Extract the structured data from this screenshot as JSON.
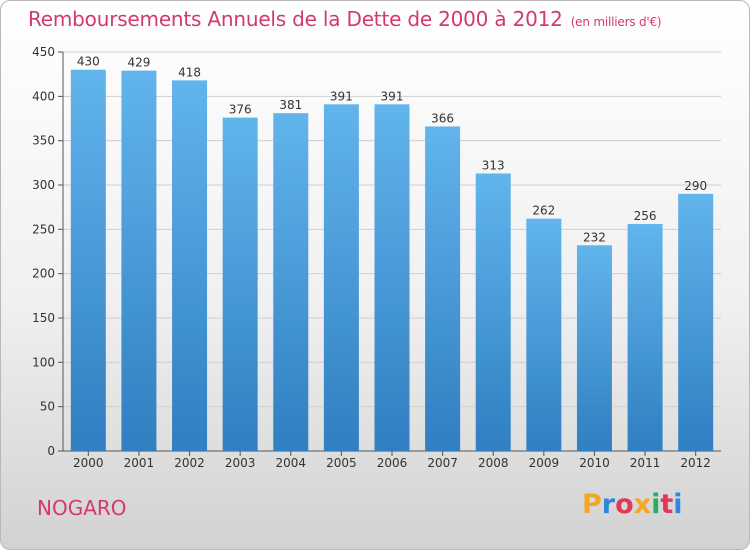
{
  "header": {
    "title": "Remboursements Annuels de la Dette de 2000 à 2012",
    "unit": "(en milliers d'€)"
  },
  "footer": {
    "commune": "NOGARO",
    "logo_letters": [
      "P",
      "r",
      "o",
      "x",
      "i",
      "t",
      "i"
    ],
    "logo_colors": [
      "#f5a623",
      "#2e86de",
      "#e2365b",
      "#f5a623",
      "#27ae60",
      "#e2365b",
      "#2e86de"
    ]
  },
  "colors": {
    "bar_top": "#62b4ec",
    "bar_bottom": "#2f7fc1",
    "title": "#d33a6a",
    "axis": "#555555"
  },
  "chart_data": {
    "type": "bar",
    "title": "Remboursements Annuels de la Dette de 2000 à 2012",
    "xlabel": "",
    "ylabel": "",
    "ylim": [
      0,
      450
    ],
    "yticks": [
      0,
      50,
      100,
      150,
      200,
      250,
      300,
      350,
      400,
      450
    ],
    "grid": true,
    "categories": [
      "2000",
      "2001",
      "2002",
      "2003",
      "2004",
      "2005",
      "2006",
      "2007",
      "2008",
      "2009",
      "2010",
      "2011",
      "2012"
    ],
    "values": [
      430,
      429,
      418,
      376,
      381,
      391,
      391,
      366,
      313,
      262,
      232,
      256,
      290
    ]
  }
}
